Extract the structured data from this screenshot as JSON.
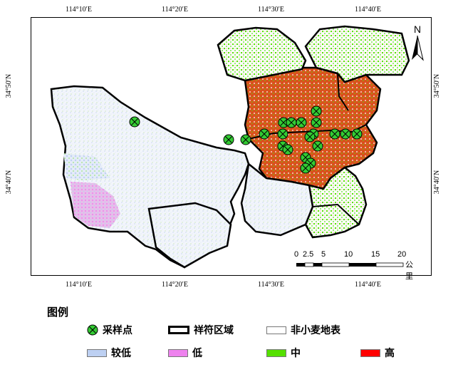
{
  "map": {
    "lon_ticks": [
      "114°10′E",
      "114°20′E",
      "114°30′E",
      "114°40′E"
    ],
    "lat_ticks": [
      "34°50′N",
      "34°40′N"
    ],
    "north_label": "N",
    "scale": {
      "labels": [
        "0",
        "2.5",
        "5",
        "10",
        "15",
        "20"
      ],
      "unit": "公里"
    }
  },
  "legend": {
    "title": "图例",
    "items": [
      {
        "label": "采样点",
        "symbol": "sample-point",
        "color": "#33cc33"
      },
      {
        "label": "祥符区域",
        "symbol": "boundary",
        "color": "#000000"
      },
      {
        "label": "非小麦地表",
        "symbol": "fill",
        "color": "#ffffff"
      },
      {
        "label": "较低",
        "symbol": "fill",
        "color": "#bdd0f2"
      },
      {
        "label": "低",
        "symbol": "fill",
        "color": "#ee82ee"
      },
      {
        "label": "中",
        "symbol": "fill",
        "color": "#55e000"
      },
      {
        "label": "高",
        "symbol": "fill",
        "color": "#ff0000"
      }
    ]
  },
  "colors": {
    "high_orange": "#d9531e",
    "mid_green": "#55e000",
    "lower_blue": "#bdd0f2",
    "low_pink": "#ee82ee"
  }
}
